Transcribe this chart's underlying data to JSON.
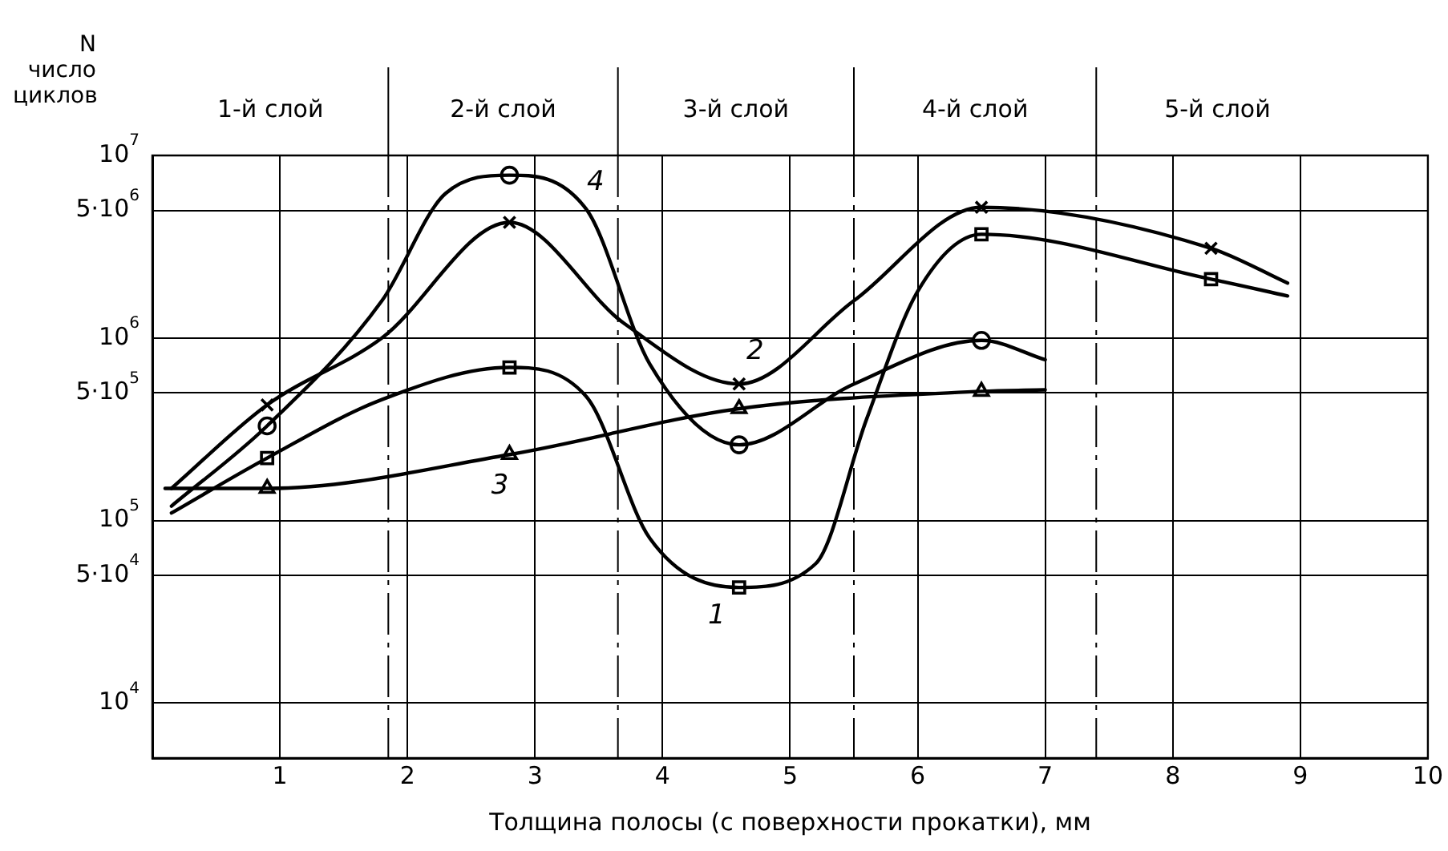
{
  "chart_data": {
    "type": "line",
    "xlabel": "Толщина полосы (с поверхности прокатки), мм",
    "ylabel": "N число циклов",
    "xlim": [
      0,
      10
    ],
    "xticks": [
      1,
      2,
      3,
      4,
      5,
      6,
      7,
      8,
      9,
      10
    ],
    "log": "y",
    "ylim": [
      5000,
      10000000
    ],
    "yticks": [
      {
        "value": 10000,
        "label": "10$^{4}$"
      },
      {
        "value": 50000,
        "label": "5·10$^{4}$"
      },
      {
        "value": 100000,
        "label": "10$^{5}$"
      },
      {
        "value": 500000,
        "label": "5·10$^{5}$"
      },
      {
        "value": 1000000,
        "label": "10$^{6}$"
      },
      {
        "value": 5000000,
        "label": "5·10$^{6}$"
      },
      {
        "value": 10000000,
        "label": "10$^{7}$"
      }
    ],
    "grid": true,
    "legend": false,
    "line_style": "solid",
    "ref_lines": [
      {
        "axis": "x",
        "value": 1.85,
        "line_style": "dashed"
      },
      {
        "axis": "x",
        "value": 3.65,
        "line_style": "dashed"
      },
      {
        "axis": "x",
        "value": 5.5,
        "line_style": "dashed"
      },
      {
        "axis": "x",
        "value": 7.4,
        "line_style": "dashed"
      }
    ],
    "series": [
      {
        "name": "1",
        "color": "#000000",
        "marker": "none",
        "x": [
          0.15,
          0.9,
          1.8,
          2.8,
          3.4,
          3.9,
          4.6,
          5.2,
          5.6,
          6,
          6.5,
          8.3,
          8.9
        ],
        "values": [
          110000,
          220000,
          460000,
          690000,
          480000,
          80000,
          43000,
          58000,
          360000,
          1800000,
          3700000,
          2100000,
          1700000
        ]
      },
      {
        "name": "2",
        "color": "#000000",
        "marker": "none",
        "x": [
          0.15,
          0.9,
          1.8,
          2.8,
          3.7,
          4.6,
          5.5,
          6.5,
          8.3,
          8.9
        ],
        "values": [
          150000,
          430000,
          1000000,
          4300000,
          1200000,
          560000,
          1600000,
          5200000,
          3100000,
          2000000
        ]
      },
      {
        "name": "3",
        "color": "#000000",
        "marker": "none",
        "x": [
          0.1,
          0.9,
          2.8,
          4.6,
          6.5,
          7
        ],
        "values": [
          150000,
          150000,
          230000,
          410000,
          510000,
          520000
        ]
      },
      {
        "name": "4",
        "color": "#000000",
        "marker": "none",
        "x": [
          0.15,
          0.9,
          1.8,
          2.3,
          2.8,
          3.4,
          3.9,
          4.6,
          5.5,
          6.5,
          7
        ],
        "values": [
          120000,
          330000,
          1600000,
          6200000,
          7800000,
          5100000,
          720000,
          260000,
          560000,
          970000,
          760000
        ]
      },
      {
        "type": "scatter",
        "color": "#000000",
        "marker": "square",
        "x": [
          0.9,
          2.8,
          4.6,
          6.5,
          8.3
        ],
        "values": [
          220000,
          690000,
          43000,
          3700000,
          2100000
        ]
      },
      {
        "type": "scatter",
        "color": "#000000",
        "marker": "cross",
        "x": [
          0.9,
          2.8,
          4.6,
          6.5,
          8.3
        ],
        "values": [
          430000,
          4300000,
          560000,
          5200000,
          3100000
        ]
      },
      {
        "type": "scatter",
        "color": "#000000",
        "marker": "triangle",
        "x": [
          0.9,
          2.8,
          4.6,
          6.5
        ],
        "values": [
          150000,
          230000,
          410000,
          510000
        ]
      },
      {
        "type": "scatter",
        "color": "#000000",
        "marker": "circle",
        "x": [
          0.9,
          2.8,
          4.6,
          6.5
        ],
        "values": [
          330000,
          7800000,
          260000,
          970000
        ]
      }
    ],
    "annotations": [
      "1-й слой",
      "2-й слой",
      "3-й слой",
      "4-й слой",
      "5-й слой"
    ]
  }
}
